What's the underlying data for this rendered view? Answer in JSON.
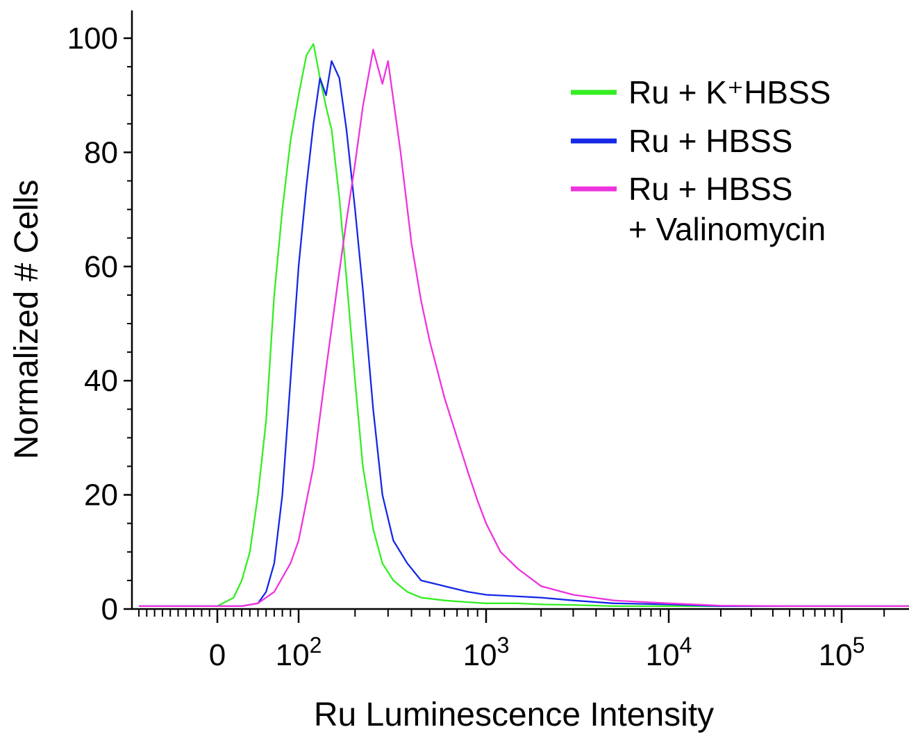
{
  "chart_data": {
    "type": "line",
    "xlabel": "Ru Luminescence Intensity",
    "ylabel": "Normalized # Cells",
    "x_scale": "biexponential",
    "ylim": [
      0,
      100
    ],
    "y_ticks": [
      "0",
      "20",
      "40",
      "60",
      "80",
      "100"
    ],
    "x_ticks": [
      {
        "value": 0,
        "base": "0",
        "exp": ""
      },
      {
        "value": 100,
        "base": "10",
        "exp": "2"
      },
      {
        "value": 1000,
        "base": "10",
        "exp": "3"
      },
      {
        "value": 10000,
        "base": "10",
        "exp": "4"
      },
      {
        "value": 100000,
        "base": "10",
        "exp": "5"
      }
    ],
    "grid": false,
    "legend_position": "top-right",
    "legend": [
      {
        "series": 0,
        "lines": [
          "Ru + K⁺HBSS"
        ]
      },
      {
        "series": 1,
        "lines": [
          "Ru + HBSS"
        ]
      },
      {
        "series": 2,
        "lines": [
          "Ru + HBSS",
          "+ Valinomycin"
        ]
      }
    ],
    "series": [
      {
        "name": "Ru + K⁺HBSS",
        "color": "#33ee22",
        "x": [
          -300,
          0,
          20,
          30,
          40,
          50,
          60,
          70,
          80,
          90,
          100,
          110,
          120,
          130,
          140,
          150,
          165,
          180,
          200,
          220,
          250,
          280,
          320,
          380,
          450,
          600,
          800,
          1000,
          1500,
          2000,
          3000,
          5000,
          8000,
          12000,
          300000
        ],
        "y": [
          0.5,
          0.5,
          2,
          5,
          10,
          20,
          33,
          55,
          70,
          82,
          90,
          97,
          99,
          93,
          88,
          84,
          72,
          58,
          40,
          25,
          14,
          8,
          5,
          3,
          2,
          1.5,
          1.2,
          1.0,
          1.0,
          0.8,
          0.7,
          0.5,
          0.5,
          0.5,
          0.5
        ]
      },
      {
        "name": "Ru + HBSS",
        "color": "#1428e6",
        "x": [
          -300,
          0,
          30,
          50,
          60,
          70,
          80,
          90,
          100,
          110,
          120,
          130,
          140,
          150,
          165,
          180,
          200,
          220,
          250,
          280,
          320,
          380,
          450,
          600,
          800,
          1000,
          1500,
          2000,
          3000,
          5000,
          10000,
          20000,
          22000,
          300000
        ],
        "y": [
          0.5,
          0.5,
          0.5,
          1,
          3,
          8,
          20,
          40,
          60,
          74,
          85,
          93,
          90,
          96,
          93,
          84,
          70,
          56,
          35,
          20,
          12,
          8,
          5,
          4,
          3,
          2.5,
          2.2,
          2,
          1.5,
          1,
          0.8,
          0.5,
          0.5,
          0.5
        ]
      },
      {
        "name": "Ru + HBSS + Valinomycin",
        "color": "#ee33dd",
        "x": [
          -300,
          0,
          30,
          50,
          70,
          90,
          100,
          120,
          140,
          160,
          180,
          200,
          220,
          250,
          280,
          300,
          350,
          400,
          450,
          500,
          600,
          700,
          800,
          900,
          1000,
          1200,
          1500,
          2000,
          3000,
          5000,
          10000,
          20000,
          50000,
          300000
        ],
        "y": [
          0.5,
          0.5,
          0.5,
          1,
          3,
          8,
          12,
          25,
          42,
          56,
          68,
          78,
          88,
          98,
          92,
          96,
          80,
          64,
          54,
          47,
          37,
          30,
          24,
          19,
          15,
          10,
          7,
          4,
          2.5,
          1.5,
          1,
          0.6,
          0.5,
          0.5
        ]
      }
    ]
  }
}
